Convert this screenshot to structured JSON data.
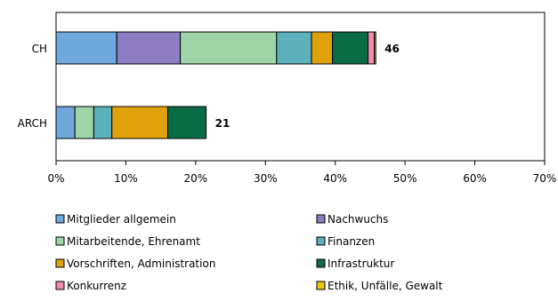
{
  "chart_data": {
    "type": "bar",
    "orientation": "horizontal",
    "stacked": true,
    "categories": [
      "CH",
      "ARCH"
    ],
    "totals": [
      "46",
      "21"
    ],
    "xlim": [
      0,
      70
    ],
    "xticks": [
      "0%",
      "10%",
      "20%",
      "30%",
      "40%",
      "50%",
      "60%",
      "70%"
    ],
    "grid": false,
    "legend_position": "bottom",
    "series": [
      {
        "name": "Mitglieder allgemein",
        "color": "#6fa8dc",
        "values": [
          8.7,
          2.7
        ]
      },
      {
        "name": "Nachwuchs",
        "color": "#8e7cc3",
        "values": [
          9.1,
          0
        ]
      },
      {
        "name": "Mitarbeitende, Ehrenamt",
        "color": "#9fd4a8",
        "values": [
          13.8,
          2.7
        ]
      },
      {
        "name": "Finanzen",
        "color": "#5bb0bb",
        "values": [
          5.0,
          2.6
        ]
      },
      {
        "name": "Vorschriften, Administration",
        "color": "#e0a20a",
        "values": [
          3.0,
          8.0
        ]
      },
      {
        "name": "Infrastruktur",
        "color": "#0b6b45",
        "values": [
          5.1,
          5.5
        ]
      },
      {
        "name": "Konkurrenz",
        "color": "#f28bb0",
        "values": [
          0.9,
          0
        ]
      },
      {
        "name": "Ethik, Unfälle, Gewalt",
        "color": "#e8c80e",
        "values": [
          0.2,
          0
        ]
      }
    ]
  }
}
